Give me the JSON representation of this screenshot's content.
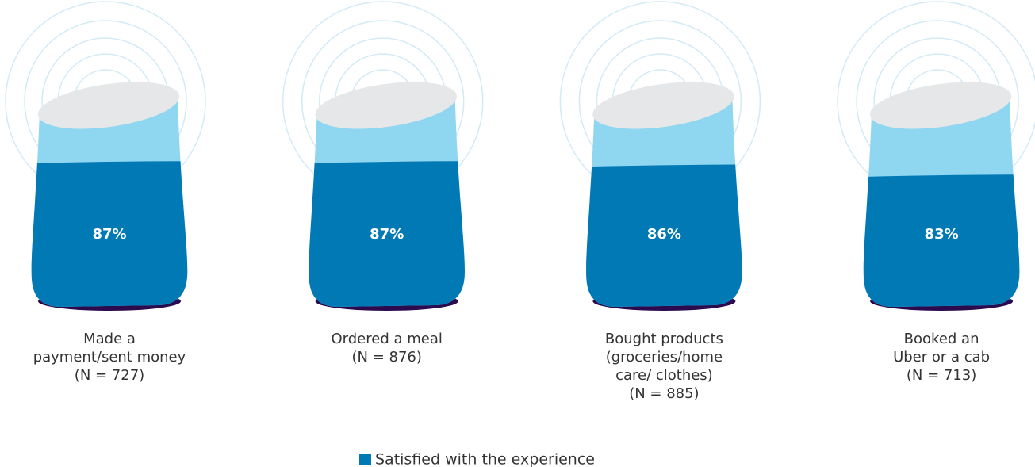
{
  "chart_data": {
    "type": "pictorial-bar",
    "categories": [
      [
        "Made a",
        "payment/sent money",
        "(N = 727)"
      ],
      [
        "Ordered a meal",
        "(N = 876)"
      ],
      [
        "Bought products",
        "(groceries/home",
        "care/ clothes)",
        "(N = 885)"
      ],
      [
        "Booked an",
        "Uber or a cab",
        "(N = 713)"
      ]
    ],
    "series": [
      {
        "name": "Satisfied with the experience",
        "color": "#0079b5",
        "values": [
          87,
          87,
          86,
          83
        ],
        "value_labels": [
          "87%",
          "87%",
          "86%",
          "83%"
        ]
      }
    ]
  }
}
